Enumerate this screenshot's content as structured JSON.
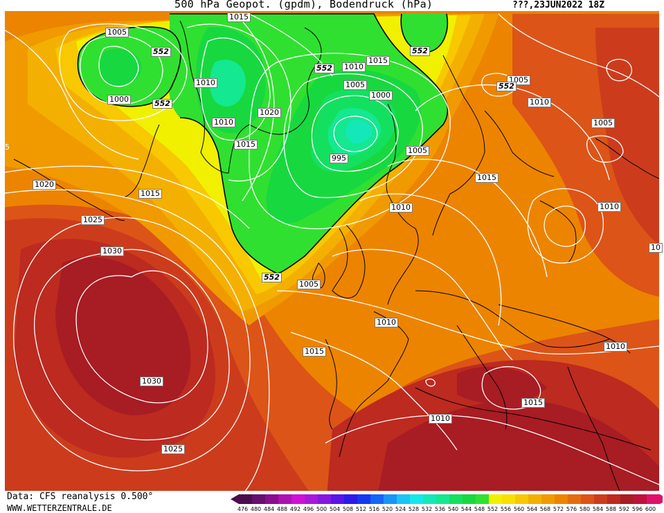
{
  "header": {
    "title": "500 hPa Geopot. (gpdm), Bodendruck (hPa)",
    "datetime": "???,23JUN2022 18Z"
  },
  "footer": {
    "source": "Data: CFS reanalysis 0.500°",
    "website": "WWW.WETTERZENTRALE.DE"
  },
  "color_scale": {
    "ticks": [
      "476",
      "480",
      "484",
      "488",
      "492",
      "496",
      "500",
      "504",
      "508",
      "512",
      "516",
      "520",
      "524",
      "528",
      "532",
      "536",
      "540",
      "544",
      "548",
      "552",
      "556",
      "560",
      "564",
      "568",
      "572",
      "576",
      "580",
      "584",
      "588",
      "592",
      "596",
      "600"
    ],
    "colors": [
      "#4b0d4b",
      "#650f6e",
      "#8a0d8f",
      "#ac10b4",
      "#cf10d6",
      "#a818d9",
      "#8418e0",
      "#5a14e6",
      "#2c1ae8",
      "#1438f0",
      "#1466f5",
      "#1a94f7",
      "#1ac4f5",
      "#14e8ea",
      "#14e8b8",
      "#14e890",
      "#14e060",
      "#18d840",
      "#30e030",
      "#f0f000",
      "#f8e000",
      "#f8c800",
      "#f4b000",
      "#f09a00",
      "#ec8400",
      "#e46c10",
      "#dc5418",
      "#cc3c1c",
      "#bc2a20",
      "#a81c24",
      "#c0103a",
      "#e0106a"
    ]
  },
  "isobars": [
    {
      "label": "1015",
      "geo": false
    },
    {
      "label": "1005",
      "geo": false
    },
    {
      "label": "552",
      "geo": true
    },
    {
      "label": "1000",
      "geo": false
    },
    {
      "label": "552",
      "geo": true
    },
    {
      "label": "1010",
      "geo": false
    },
    {
      "label": "1020",
      "geo": false
    },
    {
      "label": "1010",
      "geo": false
    },
    {
      "label": "1015",
      "geo": false
    },
    {
      "label": "552",
      "geo": true
    },
    {
      "label": "1010",
      "geo": false
    },
    {
      "label": "1015",
      "geo": false
    },
    {
      "label": "1005",
      "geo": false
    },
    {
      "label": "1000",
      "geo": false
    },
    {
      "label": "995",
      "geo": false
    },
    {
      "label": "552",
      "geo": true
    },
    {
      "label": "1005",
      "geo": false
    },
    {
      "label": "552",
      "geo": true
    },
    {
      "label": "1010",
      "geo": false
    },
    {
      "label": "1005",
      "geo": false
    },
    {
      "label": "1005",
      "geo": false
    },
    {
      "label": "1015",
      "geo": false
    },
    {
      "label": "1010",
      "geo": false
    },
    {
      "label": "1010",
      "geo": false
    },
    {
      "label": "1020",
      "geo": false
    },
    {
      "label": "1015",
      "geo": false
    },
    {
      "label": "1025",
      "geo": false
    },
    {
      "label": "1030",
      "geo": false
    },
    {
      "label": "552",
      "geo": true
    },
    {
      "label": "1005",
      "geo": false
    },
    {
      "label": "1010",
      "geo": false
    },
    {
      "label": "1015",
      "geo": false
    },
    {
      "label": "1030",
      "geo": false
    },
    {
      "label": "1025",
      "geo": false
    },
    {
      "label": "1010",
      "geo": false
    },
    {
      "label": "1015",
      "geo": false
    },
    {
      "label": "1010",
      "geo": false
    },
    {
      "label": "5",
      "geo": false
    },
    {
      "label": "10",
      "geo": false
    }
  ]
}
